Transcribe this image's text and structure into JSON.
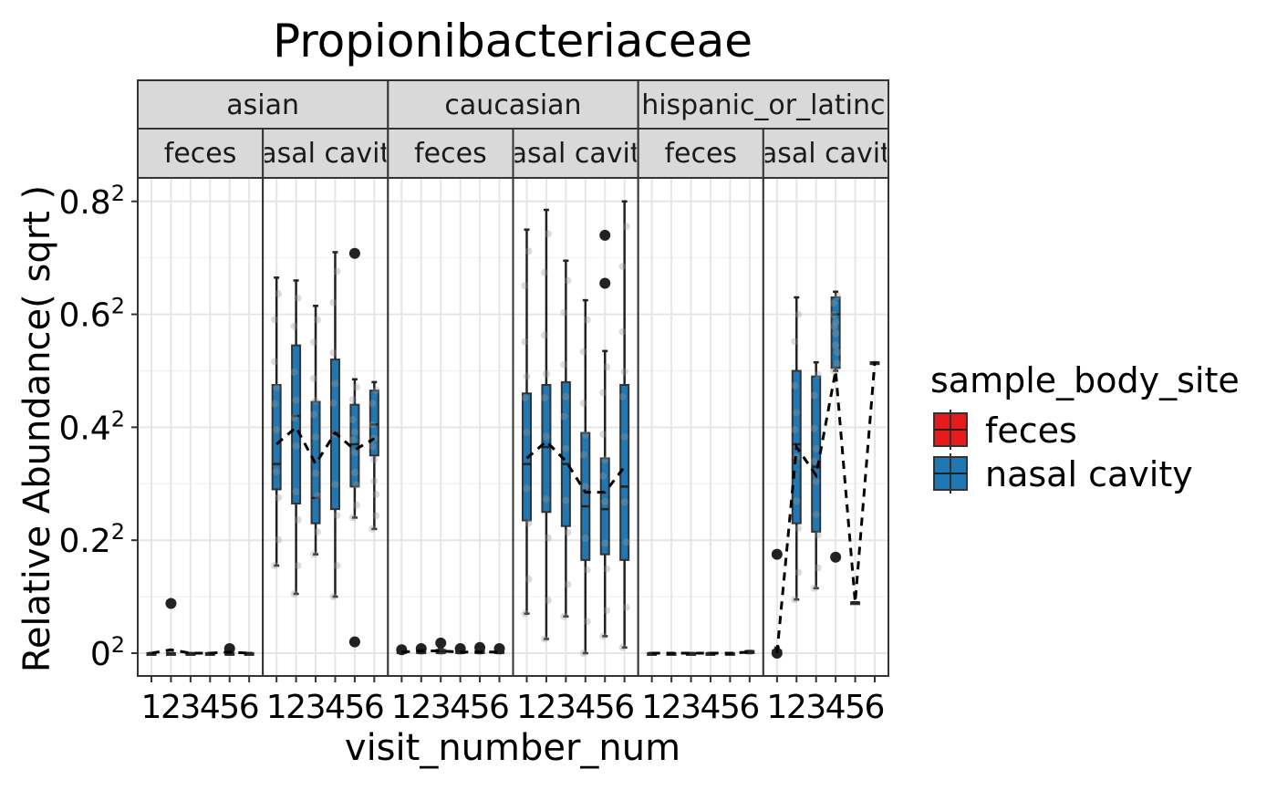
{
  "chart_data": {
    "type": "box",
    "title": "Propionibacteriaceae",
    "xlabel": "visit_number_num",
    "ylabel": "Relative Abundance( sqrt )",
    "y_scale": "sqrt",
    "ylim": [
      0,
      0.84
    ],
    "y_ticks": [
      0,
      0.2,
      0.4,
      0.6,
      0.8
    ],
    "y_tick_labels": [
      {
        "base": "0",
        "exp": "2"
      },
      {
        "base": "0.2",
        "exp": "2"
      },
      {
        "base": "0.4",
        "exp": "2"
      },
      {
        "base": "0.6",
        "exp": "2"
      },
      {
        "base": "0.8",
        "exp": "2"
      }
    ],
    "x_categories": [
      1,
      2,
      3,
      4,
      5,
      6
    ],
    "x_tick_labels": [
      "1",
      "2",
      "3",
      "4",
      "5",
      "6"
    ],
    "grid": true,
    "legend": {
      "title": "sample_body_site",
      "position": "right",
      "entries": [
        {
          "label": "feces",
          "color": "#e41a1c"
        },
        {
          "label": "nasal cavity",
          "color": "#1f78b4"
        }
      ]
    },
    "facet_rows": [
      "asian",
      "caucasian",
      "hispanic_or_latino"
    ],
    "facet_row_labels": [
      "asian",
      "caucasian",
      "hispanic_or_latinc"
    ],
    "facet_cols": [
      "feces",
      "nasal cavity"
    ],
    "facet_col_labels": [
      "feces",
      "asal cavit"
    ],
    "panels": [
      {
        "ethnicity": "asian",
        "body_site": "feces",
        "color": "#e41a1c",
        "boxes": [
          {
            "x": 1,
            "q1": 0.0,
            "median": 0.0,
            "q3": 0.0,
            "whisker_low": 0.0,
            "whisker_high": 0.0,
            "outliers": []
          },
          {
            "x": 2,
            "q1": 0.0,
            "median": 0.0,
            "q3": 0.0,
            "whisker_low": 0.0,
            "whisker_high": 0.0,
            "outliers": [
              0.088
            ]
          },
          {
            "x": 3,
            "q1": 0.0,
            "median": 0.0,
            "q3": 0.0,
            "whisker_low": 0.0,
            "whisker_high": 0.0,
            "outliers": []
          },
          {
            "x": 4,
            "q1": 0.0,
            "median": 0.0,
            "q3": 0.0,
            "whisker_low": 0.0,
            "whisker_high": 0.0,
            "outliers": []
          },
          {
            "x": 5,
            "q1": 0.0,
            "median": 0.0,
            "q3": 0.0,
            "whisker_low": 0.0,
            "whisker_high": 0.0,
            "outliers": [
              0.008
            ]
          },
          {
            "x": 6,
            "q1": 0.0,
            "median": 0.0,
            "q3": 0.0,
            "whisker_low": 0.0,
            "whisker_high": 0.0,
            "outliers": []
          }
        ],
        "mean_line": [
          0.0,
          0.006,
          0.0,
          0.0,
          0.002,
          0.0
        ]
      },
      {
        "ethnicity": "asian",
        "body_site": "nasal cavity",
        "color": "#1f78b4",
        "boxes": [
          {
            "x": 1,
            "q1": 0.29,
            "median": 0.335,
            "q3": 0.475,
            "whisker_low": 0.155,
            "whisker_high": 0.665,
            "outliers": []
          },
          {
            "x": 2,
            "q1": 0.265,
            "median": 0.42,
            "q3": 0.545,
            "whisker_low": 0.105,
            "whisker_high": 0.66,
            "outliers": []
          },
          {
            "x": 3,
            "q1": 0.23,
            "median": 0.275,
            "q3": 0.445,
            "whisker_low": 0.175,
            "whisker_high": 0.615,
            "outliers": []
          },
          {
            "x": 4,
            "q1": 0.255,
            "median": 0.39,
            "q3": 0.52,
            "whisker_low": 0.1,
            "whisker_high": 0.71,
            "outliers": []
          },
          {
            "x": 5,
            "q1": 0.295,
            "median": 0.37,
            "q3": 0.44,
            "whisker_low": 0.24,
            "whisker_high": 0.485,
            "outliers": [
              0.708,
              0.02
            ]
          },
          {
            "x": 6,
            "q1": 0.35,
            "median": 0.405,
            "q3": 0.465,
            "whisker_low": 0.22,
            "whisker_high": 0.48,
            "outliers": []
          }
        ],
        "mean_line": [
          0.37,
          0.4,
          0.335,
          0.39,
          0.36,
          0.38
        ]
      },
      {
        "ethnicity": "caucasian",
        "body_site": "feces",
        "color": "#e41a1c",
        "boxes": [
          {
            "x": 1,
            "q1": 0.0,
            "median": 0.002,
            "q3": 0.004,
            "whisker_low": 0.0,
            "whisker_high": 0.006,
            "outliers": [
              0.006
            ]
          },
          {
            "x": 2,
            "q1": 0.0,
            "median": 0.003,
            "q3": 0.005,
            "whisker_low": 0.0,
            "whisker_high": 0.007,
            "outliers": [
              0.008
            ]
          },
          {
            "x": 3,
            "q1": 0.0,
            "median": 0.003,
            "q3": 0.006,
            "whisker_low": 0.0,
            "whisker_high": 0.009,
            "outliers": [
              0.018
            ]
          },
          {
            "x": 4,
            "q1": 0.0,
            "median": 0.002,
            "q3": 0.004,
            "whisker_low": 0.0,
            "whisker_high": 0.006,
            "outliers": [
              0.008
            ]
          },
          {
            "x": 5,
            "q1": 0.0,
            "median": 0.002,
            "q3": 0.004,
            "whisker_low": 0.0,
            "whisker_high": 0.006,
            "outliers": [
              0.01
            ]
          },
          {
            "x": 6,
            "q1": 0.0,
            "median": 0.002,
            "q3": 0.004,
            "whisker_low": 0.0,
            "whisker_high": 0.006,
            "outliers": [
              0.008
            ]
          }
        ],
        "mean_line": [
          0.002,
          0.004,
          0.004,
          0.002,
          0.002,
          0.002
        ]
      },
      {
        "ethnicity": "caucasian",
        "body_site": "nasal cavity",
        "color": "#1f78b4",
        "boxes": [
          {
            "x": 1,
            "q1": 0.235,
            "median": 0.335,
            "q3": 0.46,
            "whisker_low": 0.07,
            "whisker_high": 0.75,
            "outliers": []
          },
          {
            "x": 2,
            "q1": 0.25,
            "median": 0.365,
            "q3": 0.475,
            "whisker_low": 0.025,
            "whisker_high": 0.785,
            "outliers": []
          },
          {
            "x": 3,
            "q1": 0.225,
            "median": 0.335,
            "q3": 0.48,
            "whisker_low": 0.065,
            "whisker_high": 0.695,
            "outliers": []
          },
          {
            "x": 4,
            "q1": 0.165,
            "median": 0.26,
            "q3": 0.39,
            "whisker_low": 0.0,
            "whisker_high": 0.625,
            "outliers": []
          },
          {
            "x": 5,
            "q1": 0.175,
            "median": 0.255,
            "q3": 0.345,
            "whisker_low": 0.03,
            "whisker_high": 0.535,
            "outliers": [
              0.74,
              0.655
            ]
          },
          {
            "x": 6,
            "q1": 0.165,
            "median": 0.295,
            "q3": 0.475,
            "whisker_low": 0.01,
            "whisker_high": 0.8,
            "outliers": []
          }
        ],
        "mean_line": [
          0.345,
          0.375,
          0.34,
          0.285,
          0.285,
          0.33
        ]
      },
      {
        "ethnicity": "hispanic_or_latino",
        "body_site": "feces",
        "color": "#e41a1c",
        "boxes": [
          {
            "x": 1,
            "q1": 0.0,
            "median": 0.0,
            "q3": 0.0,
            "whisker_low": 0.0,
            "whisker_high": 0.0,
            "outliers": []
          },
          {
            "x": 2,
            "q1": 0.0,
            "median": 0.0,
            "q3": 0.0,
            "whisker_low": 0.0,
            "whisker_high": 0.0,
            "outliers": []
          },
          {
            "x": 3,
            "q1": 0.0,
            "median": 0.0,
            "q3": 0.0,
            "whisker_low": 0.0,
            "whisker_high": 0.0,
            "outliers": []
          },
          {
            "x": 4,
            "q1": 0.0,
            "median": 0.0,
            "q3": 0.0,
            "whisker_low": 0.0,
            "whisker_high": 0.0,
            "outliers": []
          },
          {
            "x": 5,
            "q1": 0.0,
            "median": 0.0,
            "q3": 0.0,
            "whisker_low": 0.0,
            "whisker_high": 0.0,
            "outliers": []
          },
          {
            "x": 6,
            "q1": 0.0,
            "median": 0.002,
            "q3": 0.004,
            "whisker_low": 0.0,
            "whisker_high": 0.004,
            "outliers": []
          }
        ],
        "mean_line": [
          0.0,
          0.0,
          0.0,
          0.0,
          0.0,
          0.002
        ]
      },
      {
        "ethnicity": "hispanic_or_latino",
        "body_site": "nasal cavity",
        "color": "#1f78b4",
        "boxes": [
          {
            "x": 1,
            "q1": 0.005,
            "median": 0.005,
            "q3": 0.005,
            "whisker_low": 0.0,
            "whisker_high": 0.01,
            "outliers": [
              0.175,
              0.0
            ]
          },
          {
            "x": 2,
            "q1": 0.23,
            "median": 0.37,
            "q3": 0.5,
            "whisker_low": 0.095,
            "whisker_high": 0.63,
            "outliers": []
          },
          {
            "x": 3,
            "q1": 0.215,
            "median": 0.33,
            "q3": 0.49,
            "whisker_low": 0.115,
            "whisker_high": 0.515,
            "outliers": []
          },
          {
            "x": 4,
            "q1": 0.505,
            "median": 0.6,
            "q3": 0.63,
            "whisker_low": 0.5,
            "whisker_high": 0.64,
            "outliers": [
              0.17
            ]
          },
          {
            "x": 5,
            "q1": 0.09,
            "median": 0.09,
            "q3": 0.09,
            "whisker_low": 0.09,
            "whisker_high": 0.09,
            "outliers": []
          },
          {
            "x": 6,
            "q1": 0.515,
            "median": 0.515,
            "q3": 0.515,
            "whisker_low": 0.515,
            "whisker_high": 0.515,
            "outliers": []
          }
        ],
        "mean_line": [
          0.0,
          0.365,
          0.315,
          0.5,
          0.09,
          0.515
        ]
      }
    ]
  }
}
